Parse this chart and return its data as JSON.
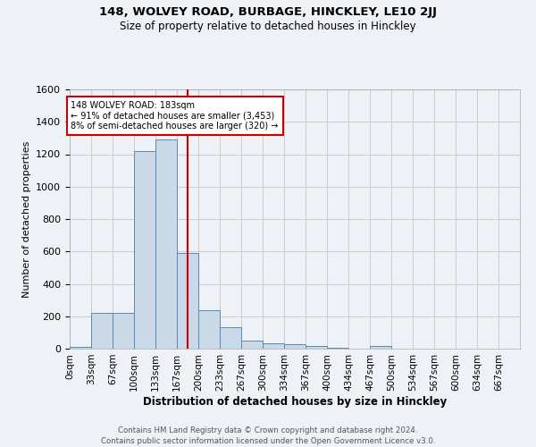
{
  "title1": "148, WOLVEY ROAD, BURBAGE, HINCKLEY, LE10 2JJ",
  "title2": "Size of property relative to detached houses in Hinckley",
  "xlabel": "Distribution of detached houses by size in Hinckley",
  "ylabel": "Number of detached properties",
  "footnote1": "Contains HM Land Registry data © Crown copyright and database right 2024.",
  "footnote2": "Contains public sector information licensed under the Open Government Licence v3.0.",
  "bin_labels": [
    "0sqm",
    "33sqm",
    "67sqm",
    "100sqm",
    "133sqm",
    "167sqm",
    "200sqm",
    "233sqm",
    "267sqm",
    "300sqm",
    "334sqm",
    "367sqm",
    "400sqm",
    "434sqm",
    "467sqm",
    "500sqm",
    "534sqm",
    "567sqm",
    "600sqm",
    "634sqm",
    "667sqm"
  ],
  "bar_values": [
    10,
    220,
    220,
    1220,
    1290,
    590,
    235,
    130,
    50,
    35,
    25,
    15,
    5,
    0,
    15,
    0,
    0,
    0,
    0,
    0,
    0
  ],
  "bar_color": "#c9d9e8",
  "bar_edge_color": "#5a8ab0",
  "red_line_x": 183,
  "bin_width": 33.333,
  "ylim": [
    0,
    1600
  ],
  "yticks": [
    0,
    200,
    400,
    600,
    800,
    1000,
    1200,
    1400,
    1600
  ],
  "annotation_title": "148 WOLVEY ROAD: 183sqm",
  "annotation_line1": "← 91% of detached houses are smaller (3,453)",
  "annotation_line2": "8% of semi-detached houses are larger (320) →",
  "annotation_box_color": "#ffffff",
  "annotation_box_edge": "#cc0000",
  "red_line_color": "#cc0000",
  "grid_color": "#cccccc",
  "background_color": "#eef2f7"
}
